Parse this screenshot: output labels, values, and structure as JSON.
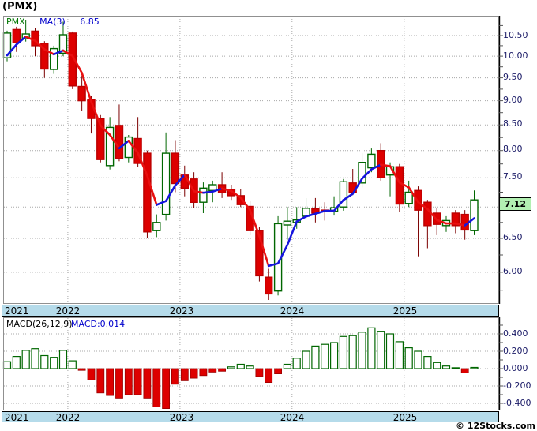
{
  "title": "(PMX)",
  "price_panel": {
    "legend": {
      "symbol": "PMX",
      "ma_label": "MA(3)",
      "ma_value": "6.85"
    },
    "axis_labels": [
      "10.50",
      "10.00",
      "9.50",
      "9.00",
      "8.50",
      "8.00",
      "7.50",
      "6.50",
      "6.00"
    ],
    "last_price": "7.12"
  },
  "macd_panel": {
    "legend_left": "MACD(26,12,9)",
    "legend_right": "MACD:0.014",
    "axis_labels": [
      "0.400",
      "0.200",
      "0.000",
      "-0.200",
      "-0.400"
    ]
  },
  "x_axis": {
    "years": [
      "2021",
      "2022",
      "2023",
      "2024",
      "2025"
    ]
  },
  "watermark": "© 12Stocks.com",
  "colors": {
    "up": "#006600",
    "down": "#dd0000",
    "down_wick": "#7b0000",
    "ma_up": "#1515dd",
    "ma_down": "#e81010",
    "band_bg": "#b5dbea",
    "grid": "#a8a8a8",
    "tick": "#555555",
    "frame": "#909090",
    "axis_line": "#000000",
    "axis_text": "#1a1a66",
    "legend_symbol": "#007700",
    "legend_blue": "#0000cc",
    "last_price_bg": "#b2f0b2",
    "macd_pos_stroke": "#006600",
    "macd_neg_fill": "#dd0000",
    "macd_neg_stroke": "#990000"
  },
  "chart_data": [
    {
      "type": "candlestick",
      "title": "(PMX) monthly price",
      "yscale": "log",
      "ylim": [
        5.55,
        11.05
      ],
      "grid": true,
      "gridlines": [
        10.5,
        10.0,
        9.5,
        9.0,
        8.5,
        8.0,
        7.5,
        7.0,
        6.5,
        6.0
      ],
      "yticks_labeled": [
        10.5,
        10.0,
        9.5,
        9.0,
        8.5,
        8.0,
        7.5,
        6.5,
        6.0
      ],
      "last_close": 7.12,
      "x": [
        "2021-06",
        "2021-07",
        "2021-08",
        "2021-09",
        "2021-10",
        "2021-11",
        "2021-12",
        "2022-01",
        "2022-02",
        "2022-03",
        "2022-04",
        "2022-05",
        "2022-06",
        "2022-07",
        "2022-08",
        "2022-09",
        "2022-10",
        "2022-11",
        "2022-12",
        "2023-01",
        "2023-02",
        "2023-03",
        "2023-04",
        "2023-05",
        "2023-06",
        "2023-07",
        "2023-08",
        "2023-09",
        "2023-10",
        "2023-11",
        "2023-12",
        "2024-01",
        "2024-02",
        "2024-03",
        "2024-04",
        "2024-05",
        "2024-06",
        "2024-07",
        "2024-08",
        "2024-09",
        "2024-10",
        "2024-11",
        "2024-12",
        "2025-01",
        "2025-02",
        "2025-03",
        "2025-04",
        "2025-05",
        "2025-06",
        "2025-07",
        "2025-08"
      ],
      "ohlc": [
        [
          9.96,
          10.62,
          9.88,
          10.56
        ],
        [
          10.65,
          10.72,
          10.1,
          10.32
        ],
        [
          10.42,
          10.9,
          10.35,
          10.54
        ],
        [
          10.61,
          10.68,
          10.0,
          10.25
        ],
        [
          10.31,
          10.36,
          9.5,
          9.7
        ],
        [
          9.69,
          10.25,
          9.59,
          10.18
        ],
        [
          10.07,
          10.85,
          10.0,
          10.52
        ],
        [
          10.56,
          10.6,
          9.25,
          9.32
        ],
        [
          9.31,
          9.55,
          8.78,
          9.0
        ],
        [
          9.03,
          9.1,
          8.33,
          8.63
        ],
        [
          8.63,
          8.7,
          7.78,
          7.83
        ],
        [
          7.72,
          8.66,
          7.65,
          8.45
        ],
        [
          8.49,
          8.92,
          7.8,
          7.85
        ],
        [
          7.87,
          8.3,
          7.78,
          8.26
        ],
        [
          8.23,
          8.66,
          7.7,
          7.76
        ],
        [
          7.95,
          8.0,
          6.5,
          6.6
        ],
        [
          6.62,
          6.88,
          6.52,
          6.75
        ],
        [
          6.88,
          8.35,
          6.78,
          7.95
        ],
        [
          7.95,
          8.2,
          7.25,
          7.4
        ],
        [
          7.55,
          7.72,
          7.18,
          7.32
        ],
        [
          7.48,
          7.6,
          6.98,
          7.08
        ],
        [
          7.08,
          7.42,
          6.9,
          7.32
        ],
        [
          7.28,
          7.45,
          7.08,
          7.38
        ],
        [
          7.38,
          7.6,
          7.15,
          7.24
        ],
        [
          7.3,
          7.38,
          7.12,
          7.19
        ],
        [
          7.19,
          7.3,
          7.0,
          7.04
        ],
        [
          7.01,
          7.1,
          6.55,
          6.62
        ],
        [
          6.62,
          6.68,
          5.87,
          5.95
        ],
        [
          5.93,
          6.05,
          5.62,
          5.7
        ],
        [
          5.74,
          6.85,
          5.68,
          6.73
        ],
        [
          6.71,
          7.0,
          6.48,
          6.77
        ],
        [
          6.75,
          7.0,
          6.65,
          6.79
        ],
        [
          6.85,
          7.15,
          6.82,
          6.98
        ],
        [
          6.97,
          7.15,
          6.75,
          6.9
        ],
        [
          6.95,
          7.08,
          6.78,
          6.93
        ],
        [
          6.93,
          7.18,
          6.86,
          6.99
        ],
        [
          7.0,
          7.48,
          6.94,
          7.43
        ],
        [
          7.41,
          7.66,
          7.2,
          7.25
        ],
        [
          7.41,
          7.95,
          7.33,
          7.78
        ],
        [
          7.68,
          8.04,
          7.6,
          7.93
        ],
        [
          8.0,
          8.14,
          7.45,
          7.5
        ],
        [
          7.55,
          7.78,
          7.18,
          7.7
        ],
        [
          7.7,
          7.75,
          6.92,
          7.05
        ],
        [
          7.06,
          7.45,
          7.0,
          7.25
        ],
        [
          7.28,
          7.35,
          6.23,
          6.95
        ],
        [
          7.08,
          7.12,
          6.35,
          6.7
        ],
        [
          6.9,
          6.98,
          6.55,
          6.72
        ],
        [
          6.7,
          6.85,
          6.6,
          6.78
        ],
        [
          6.9,
          6.95,
          6.58,
          6.7
        ],
        [
          6.88,
          6.95,
          6.48,
          6.63
        ],
        [
          6.62,
          7.28,
          6.55,
          7.12
        ]
      ],
      "overlays": [
        {
          "name": "MA(3)",
          "window": 3,
          "last_value": 6.85,
          "pre_closes": [
            9.55,
            9.95
          ],
          "style": "blue segments when rising, red when falling"
        }
      ]
    },
    {
      "type": "bar",
      "title": "MACD(26,12,9)",
      "last_value": 0.014,
      "ylim": [
        -0.5,
        0.52
      ],
      "grid": true,
      "gridlines": [
        0.4,
        0.2,
        0.0,
        -0.2,
        -0.4
      ],
      "positive_style": "hollow green",
      "negative_style": "solid red",
      "values": [
        0.08,
        0.14,
        0.21,
        0.23,
        0.15,
        0.13,
        0.21,
        0.09,
        -0.02,
        -0.13,
        -0.28,
        -0.31,
        -0.34,
        -0.3,
        -0.3,
        -0.34,
        -0.44,
        -0.46,
        -0.18,
        -0.14,
        -0.11,
        -0.08,
        -0.04,
        -0.03,
        0.02,
        0.05,
        0.03,
        -0.09,
        -0.16,
        -0.06,
        0.05,
        0.12,
        0.2,
        0.26,
        0.28,
        0.3,
        0.37,
        0.38,
        0.42,
        0.47,
        0.43,
        0.4,
        0.31,
        0.24,
        0.2,
        0.14,
        0.07,
        0.03,
        0.01,
        -0.05,
        0.014
      ]
    }
  ]
}
